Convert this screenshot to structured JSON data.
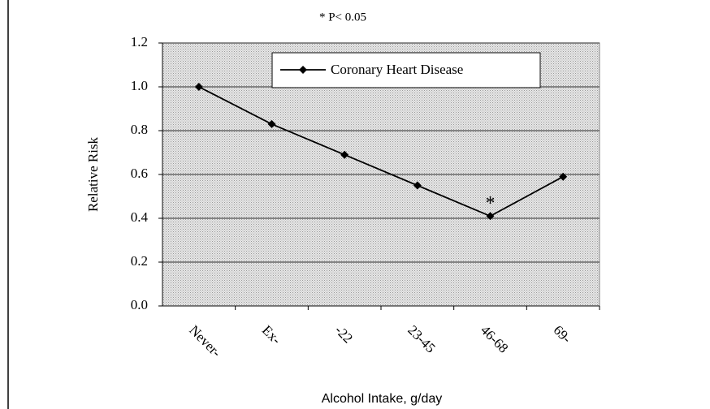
{
  "chart_data": {
    "type": "line",
    "title": "* P< 0.05",
    "categories": [
      "Never-",
      "Ex-",
      "-22",
      "23-45",
      "46-68",
      "69-"
    ],
    "series": [
      {
        "name": "Coronary Heart Disease",
        "color": "#000000",
        "values": [
          1.0,
          0.83,
          0.69,
          0.55,
          0.41,
          0.59
        ]
      }
    ],
    "ylim": [
      0,
      1.2
    ],
    "yticks": [
      {
        "value": 0,
        "label": "0.0"
      },
      0.2,
      0.4,
      0.6,
      0.8,
      {
        "value": 1,
        "label": "1.0"
      },
      1.2
    ],
    "y_label": "Relative Risk",
    "x_label": "Alcohol Intake, g/day",
    "annotations": [
      {
        "text": "*",
        "category": "46-68"
      }
    ],
    "grid": true,
    "legend": "top-right"
  }
}
